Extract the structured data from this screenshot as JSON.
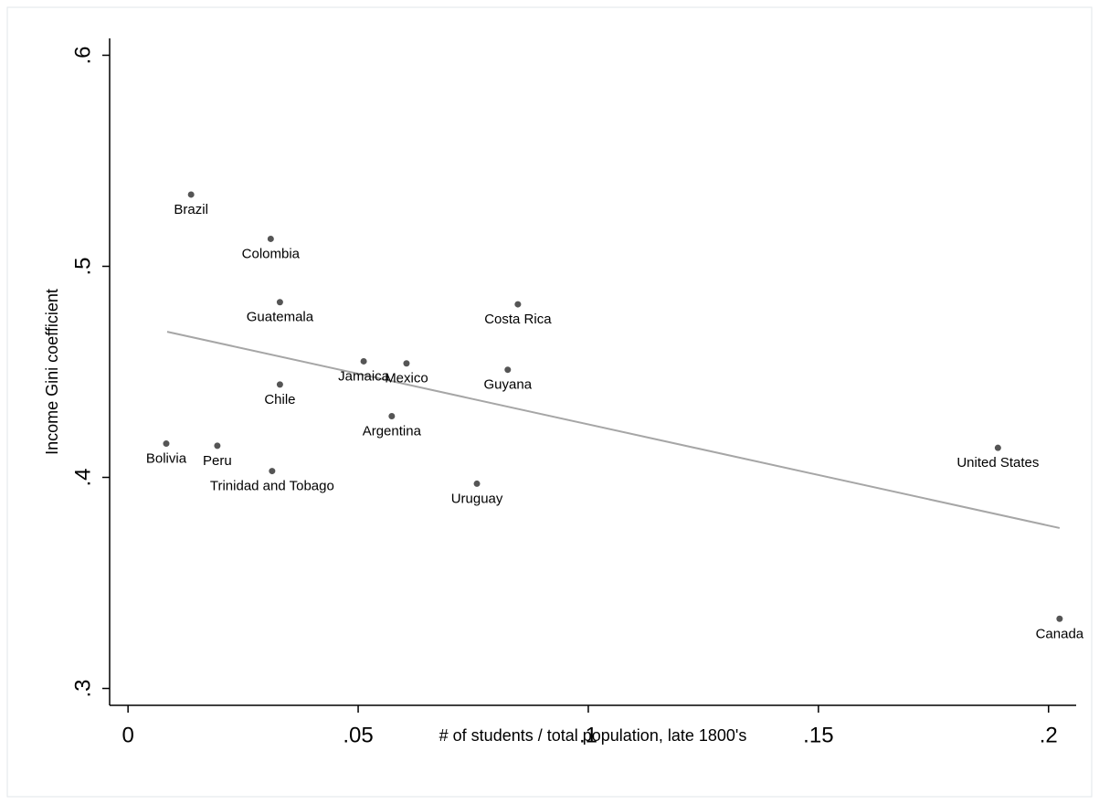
{
  "chart_data": {
    "type": "scatter",
    "x_label": "# of students / total population, late 1800's",
    "y_label": "Income Gini coefficient",
    "point_labels": [
      "Brazil",
      "Colombia",
      "Guatemala",
      "Costa Rica",
      "Jamaica",
      "Mexico",
      "Guyana",
      "Chile",
      "Argentina",
      "Bolivia",
      "Peru",
      "Trinidad and Tobago",
      "Uruguay",
      "United States",
      "Canada"
    ],
    "x": [
      0.0137,
      0.031,
      0.033,
      0.0847,
      0.0512,
      0.0605,
      0.0825,
      0.033,
      0.0573,
      0.0083,
      0.0194,
      0.0313,
      0.0758,
      0.189,
      0.2024
    ],
    "values": [
      0.534,
      0.513,
      0.483,
      0.482,
      0.455,
      0.454,
      0.451,
      0.444,
      0.429,
      0.416,
      0.415,
      0.403,
      0.397,
      0.414,
      0.333
    ],
    "color": "#555555",
    "fit": {
      "x": [
        0.0085,
        0.2024
      ],
      "values": [
        0.469,
        0.376
      ],
      "color": "#a6a6a6"
    },
    "xlim": [
      -0.004,
      0.206
    ],
    "ylim": [
      0.292,
      0.608
    ],
    "xticks": [
      0,
      {
        "value": 0.05,
        "label": ".05"
      },
      {
        "value": 0.1,
        "label": ".1"
      },
      {
        "value": 0.15,
        "label": ".15"
      },
      {
        "value": 0.2,
        "label": ".2"
      }
    ],
    "yticks": [
      {
        "value": 0.3,
        "label": ".3"
      },
      {
        "value": 0.4,
        "label": ".4"
      },
      {
        "value": 0.5,
        "label": ".5"
      },
      {
        "value": 0.6,
        "label": ".6"
      }
    ]
  }
}
